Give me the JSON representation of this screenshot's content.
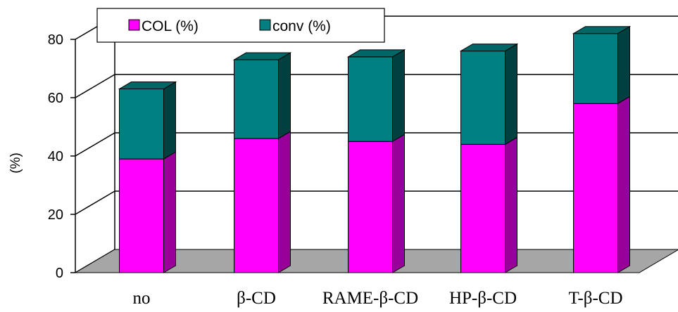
{
  "chart_data": {
    "type": "bar",
    "stacked": true,
    "three_d": true,
    "categories": [
      "no",
      "β-CD",
      "RAME-β-CD",
      "HP-β-CD",
      "T-β-CD"
    ],
    "series": [
      {
        "name": "COL (%)",
        "values": [
          39,
          46,
          45,
          44,
          58
        ]
      },
      {
        "name": "conv (%)",
        "values": [
          24,
          27,
          29,
          32,
          24
        ]
      }
    ],
    "ylabel": "(%)",
    "xlabel": "",
    "title": "",
    "ylim": [
      0,
      80
    ],
    "yticks": [
      0,
      20,
      40,
      60,
      80
    ],
    "grid": true,
    "legend_position": "top",
    "colors": {
      "col_front": "#ff00ff",
      "col_side": "#990099",
      "conv_front": "#008080",
      "conv_top": "#006666",
      "conv_side": "#004040",
      "floor": "#a6a6a6"
    }
  }
}
